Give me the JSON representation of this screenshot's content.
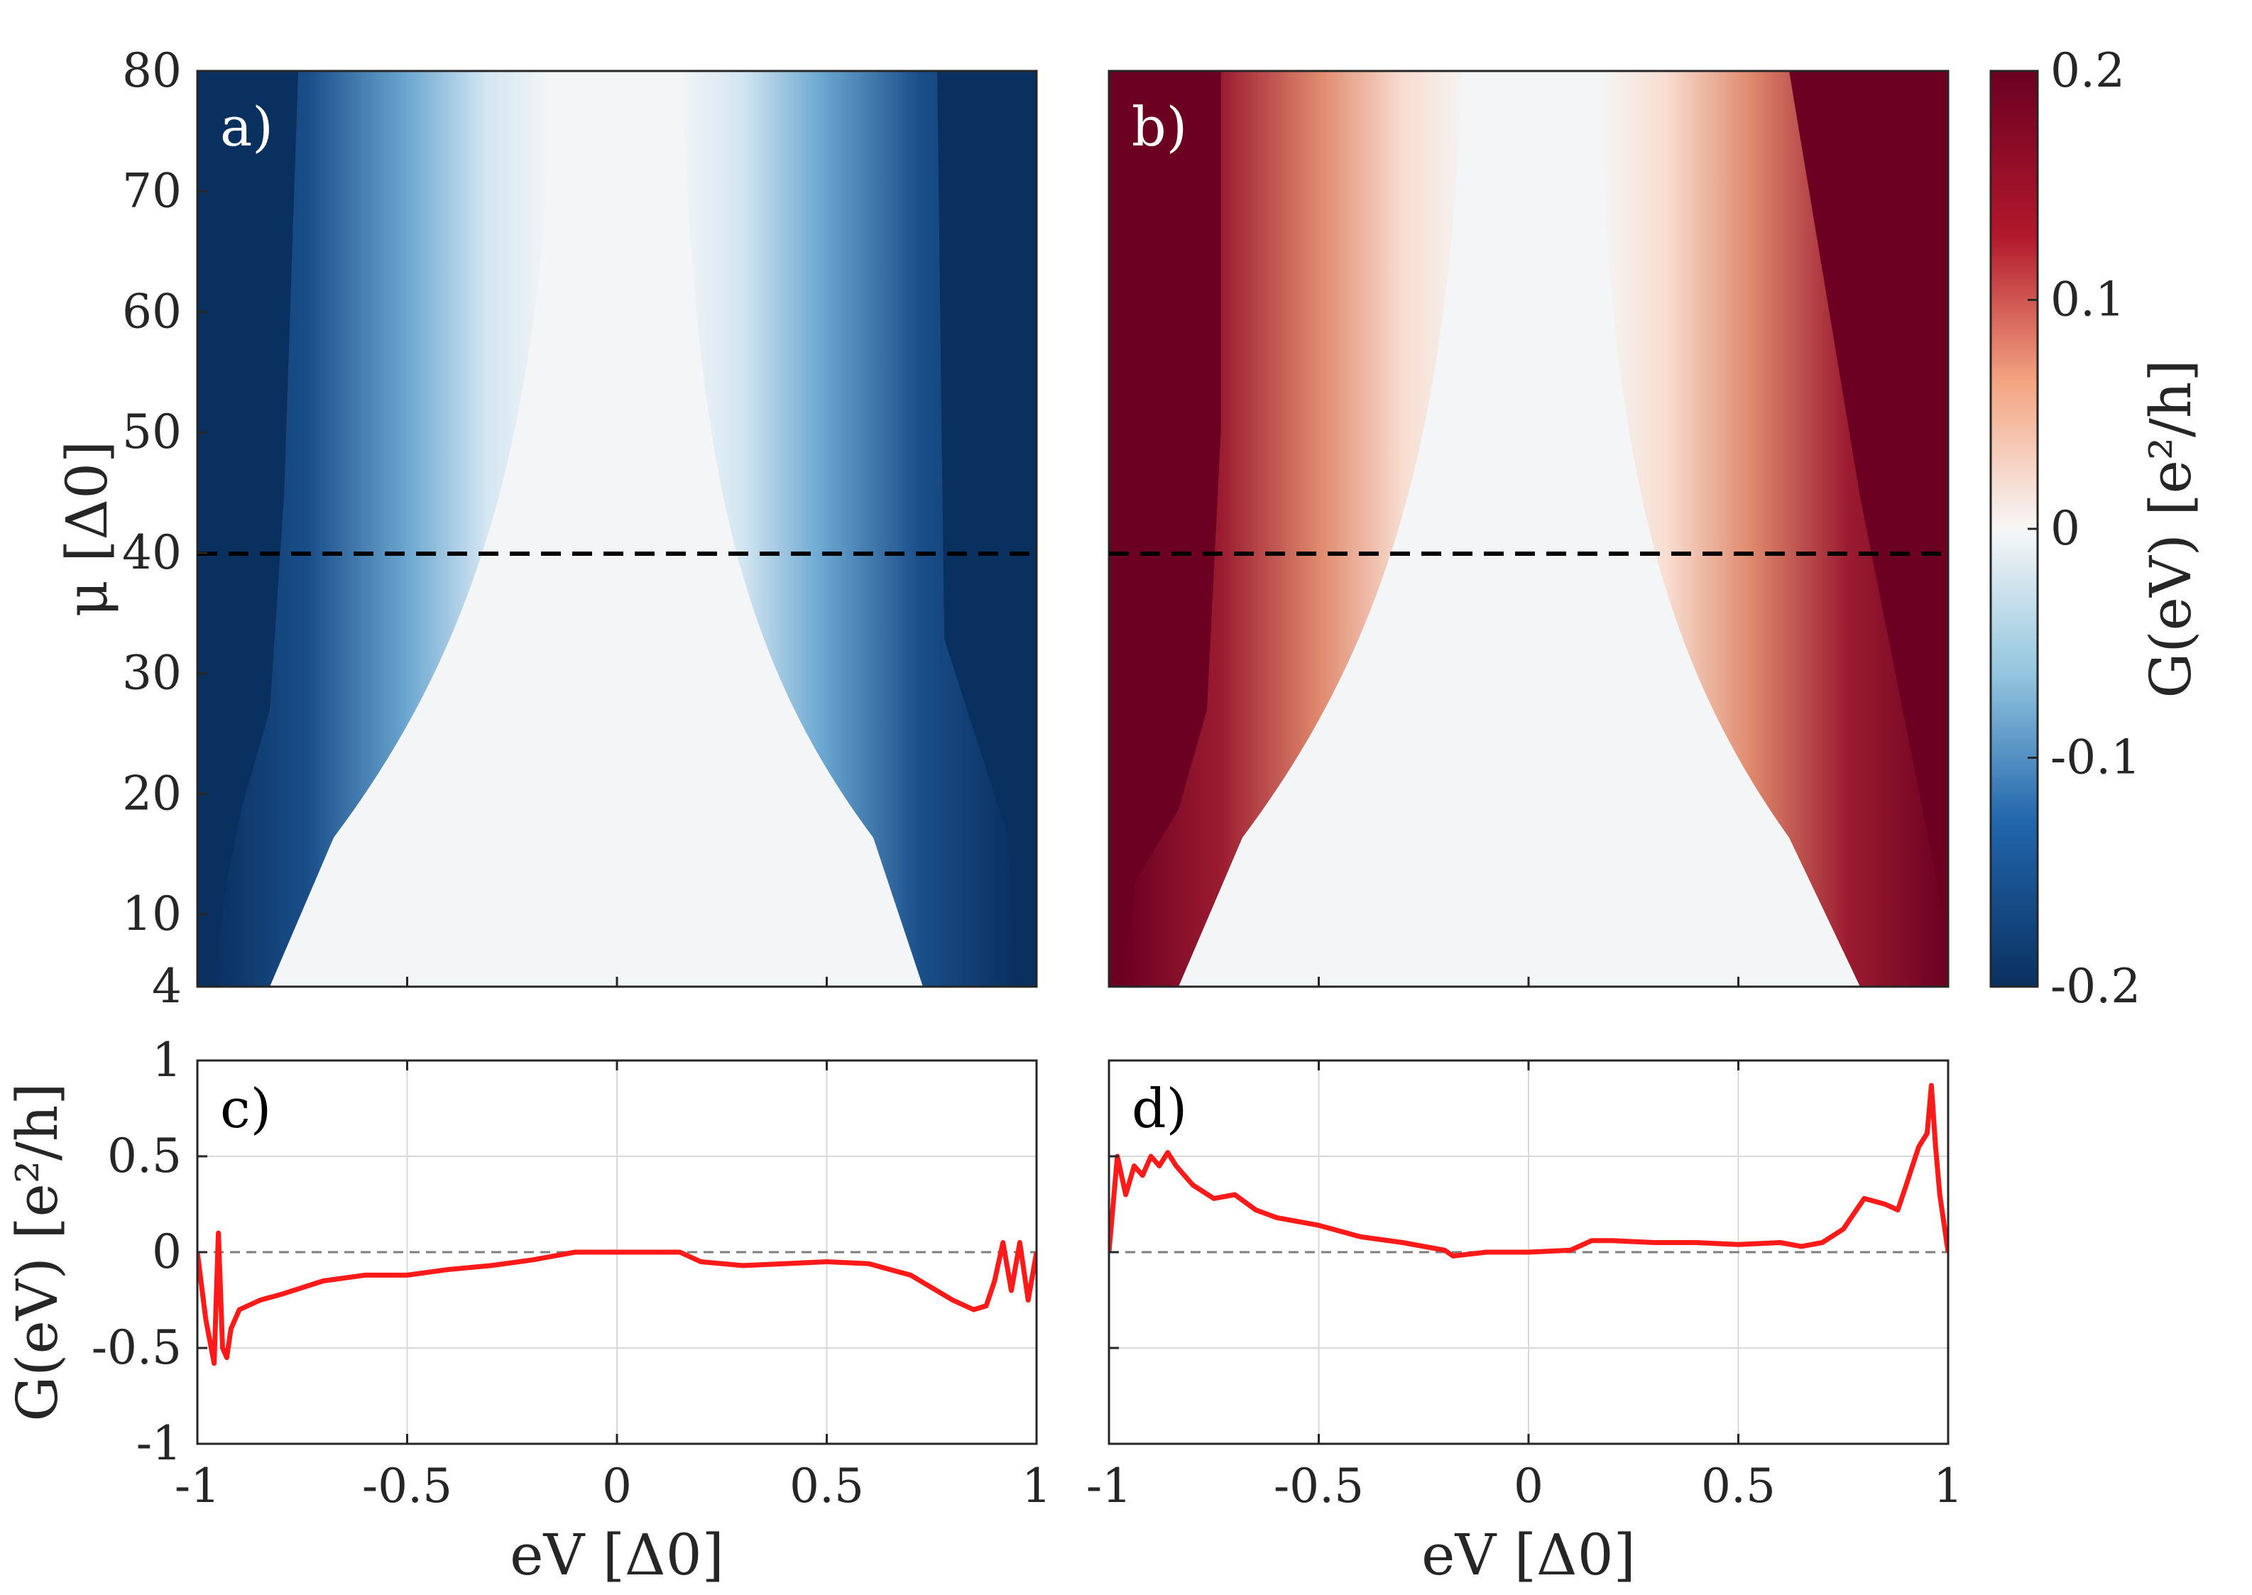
{
  "chart_data": [
    {
      "type": "heatmap",
      "panel_label": "a)",
      "x_range": [
        -1,
        1
      ],
      "y_range": [
        4,
        80
      ],
      "y_ticks": [
        "80",
        "70",
        "60",
        "50",
        "40",
        "30",
        "20",
        "10",
        "4"
      ],
      "ylabel": "μ [Δ0]",
      "colormap": "blue",
      "marked_mu": 40,
      "gap_edge": "central gap closes toward |eV| ≈ 0.1 at μ = 80 and widens to |eV| ≈ 0.75 at μ = 4"
    },
    {
      "type": "heatmap",
      "panel_label": "b)",
      "x_range": [
        -1,
        1
      ],
      "y_range": [
        4,
        80
      ],
      "colormap": "red",
      "marked_mu": 40
    },
    {
      "type": "line",
      "panel_label": "c)",
      "color": "#ff1a1a",
      "x": [
        -1.0,
        -0.98,
        -0.96,
        -0.95,
        -0.94,
        -0.93,
        -0.92,
        -0.9,
        -0.85,
        -0.8,
        -0.7,
        -0.6,
        -0.5,
        -0.4,
        -0.3,
        -0.2,
        -0.15,
        -0.1,
        0.0,
        0.1,
        0.15,
        0.2,
        0.3,
        0.4,
        0.5,
        0.6,
        0.7,
        0.8,
        0.85,
        0.88,
        0.9,
        0.92,
        0.94,
        0.96,
        0.98,
        1.0
      ],
      "y": [
        0.0,
        -0.35,
        -0.58,
        0.1,
        -0.5,
        -0.55,
        -0.4,
        -0.3,
        -0.25,
        -0.22,
        -0.15,
        -0.12,
        -0.12,
        -0.09,
        -0.07,
        -0.04,
        -0.02,
        0.0,
        0.0,
        0.0,
        0.0,
        -0.05,
        -0.07,
        -0.06,
        -0.05,
        -0.06,
        -0.12,
        -0.25,
        -0.3,
        -0.28,
        -0.15,
        0.05,
        -0.2,
        0.05,
        -0.25,
        0.0
      ],
      "ylim": [
        -1,
        1
      ],
      "xlim": [
        -1,
        1
      ],
      "x_ticks": [
        "-1",
        "-0.5",
        "0",
        "0.5",
        "1"
      ],
      "y_ticks": [
        "1",
        "0.5",
        "0",
        "-0.5",
        "-1"
      ],
      "xlabel": "eV [Δ0]",
      "ylabel": "G(eV) [e²/h]",
      "grid": true
    },
    {
      "type": "line",
      "panel_label": "d)",
      "color": "#ff1a1a",
      "x": [
        -1.0,
        -0.98,
        -0.96,
        -0.94,
        -0.92,
        -0.9,
        -0.88,
        -0.86,
        -0.84,
        -0.8,
        -0.75,
        -0.7,
        -0.65,
        -0.6,
        -0.5,
        -0.4,
        -0.3,
        -0.2,
        -0.18,
        -0.1,
        0.0,
        0.1,
        0.15,
        0.2,
        0.3,
        0.4,
        0.5,
        0.6,
        0.65,
        0.7,
        0.75,
        0.8,
        0.85,
        0.88,
        0.9,
        0.93,
        0.95,
        0.96,
        0.97,
        0.98,
        1.0
      ],
      "y": [
        0.0,
        0.5,
        0.3,
        0.45,
        0.4,
        0.5,
        0.45,
        0.52,
        0.45,
        0.35,
        0.28,
        0.3,
        0.22,
        0.18,
        0.14,
        0.08,
        0.05,
        0.01,
        -0.02,
        0.0,
        0.0,
        0.01,
        0.06,
        0.06,
        0.05,
        0.05,
        0.04,
        0.05,
        0.03,
        0.05,
        0.12,
        0.28,
        0.25,
        0.22,
        0.35,
        0.55,
        0.62,
        0.87,
        0.55,
        0.3,
        0.0
      ],
      "ylim": [
        -1,
        1
      ],
      "xlim": [
        -1,
        1
      ],
      "x_ticks": [
        "-1",
        "-0.5",
        "0",
        "0.5",
        "1"
      ],
      "xlabel": "eV [Δ0]",
      "grid": true
    }
  ],
  "colorbar": {
    "ticks": [
      "0.2",
      "0.1",
      "0",
      "-0.1",
      "-0.2"
    ],
    "values": [
      0.2,
      0.1,
      0,
      -0.1,
      -0.2
    ],
    "label": "G(eV) [e²/h]"
  },
  "colors": {
    "neg_dark": "#0a3060",
    "pos_dark": "#6b0022",
    "center": "#f4f5f6",
    "line": "#ff1a1a"
  }
}
